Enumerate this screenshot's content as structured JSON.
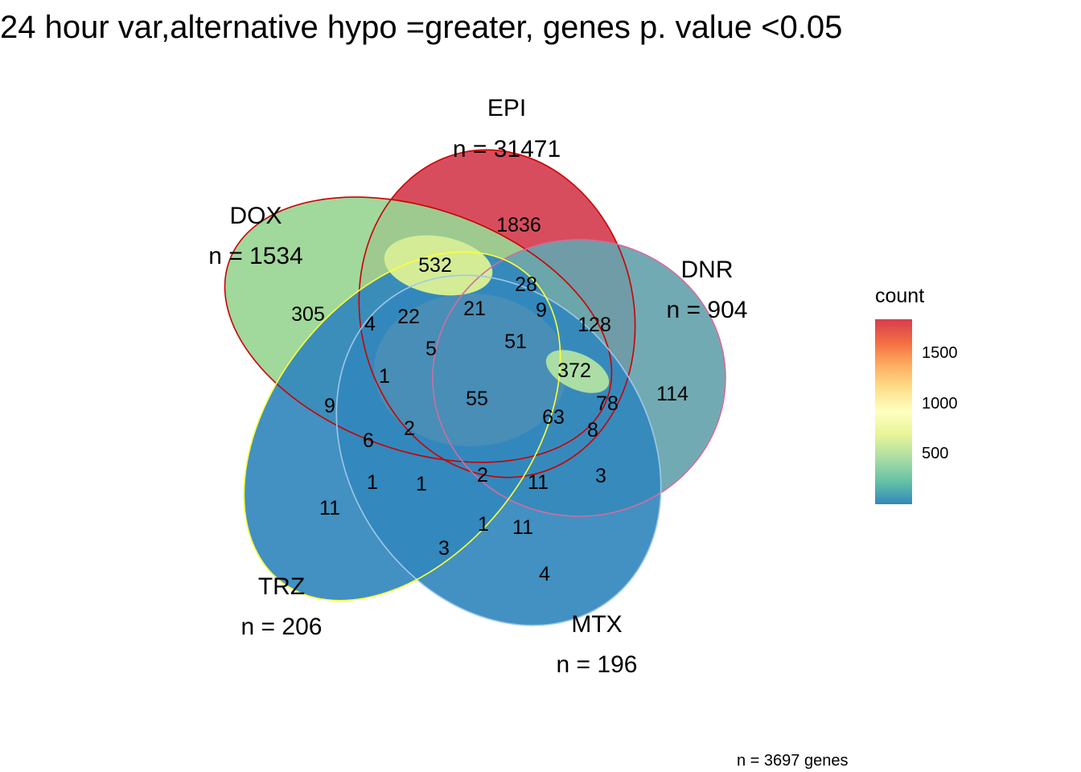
{
  "title": "24 hour var,alternative hypo =greater, genes p. value <0.05",
  "caption": "n = 3697 genes",
  "chart_data": {
    "type": "venn",
    "title": "24 hour var,alternative hypo =greater, genes p. value <0.05",
    "sets": [
      {
        "name": "EPI",
        "size_label": "n = 31471",
        "outline": "#cc0000"
      },
      {
        "name": "DNR",
        "size_label": "n = 904",
        "outline": "#d16d9e"
      },
      {
        "name": "MTX",
        "size_label": "n = 196",
        "outline": "#9ec7e8"
      },
      {
        "name": "TRZ",
        "size_label": "n = 206",
        "outline": "#ffff33"
      },
      {
        "name": "DOX",
        "size_label": "n = 1534",
        "outline": "#cc0000"
      }
    ],
    "regions": [
      {
        "sets": [
          "EPI"
        ],
        "count": 1836
      },
      {
        "sets": [
          "DNR"
        ],
        "count": 114
      },
      {
        "sets": [
          "MTX"
        ],
        "count": 4
      },
      {
        "sets": [
          "TRZ"
        ],
        "count": 11
      },
      {
        "sets": [
          "DOX"
        ],
        "count": 305
      },
      {
        "sets": [
          "EPI",
          "DOX"
        ],
        "count": 532
      },
      {
        "sets": [
          "EPI",
          "DNR"
        ],
        "count": 128
      },
      {
        "sets": [
          "EPI",
          "TRZ",
          "DNR"
        ],
        "count": 28
      },
      {
        "sets": [
          "EPI",
          "DOX",
          "TRZ",
          "DNR"
        ],
        "count": 9
      },
      {
        "sets": [
          "EPI",
          "DOX",
          "TRZ"
        ],
        "count": 21
      },
      {
        "sets": [
          "EPI",
          "DOX",
          "MTX"
        ],
        "count": 22
      },
      {
        "sets": [
          "DOX",
          "MTX"
        ],
        "count": 4
      },
      {
        "sets": [
          "EPI",
          "DOX",
          "MTX",
          "TRZ"
        ],
        "count": 5
      },
      {
        "sets": [
          "EPI",
          "DOX",
          "DNR"
        ],
        "count": 372
      },
      {
        "sets": [
          "EPI",
          "DOX",
          "TRZ",
          "DNR",
          "X1"
        ],
        "count": 51
      },
      {
        "sets": [
          "EPI",
          "DOX",
          "MTX",
          "TRZ",
          "DNR"
        ],
        "count": 55
      },
      {
        "sets": [
          "EPI",
          "DOX",
          "TRZ",
          "DNR",
          "X2"
        ],
        "count": 63
      },
      {
        "sets": [
          "EPI",
          "DOX",
          "DNR",
          "X3"
        ],
        "count": 78
      },
      {
        "sets": [
          "DOX",
          "DNR"
        ],
        "count": 8
      },
      {
        "sets": [
          "MTX",
          "DNR"
        ],
        "count": 3
      },
      {
        "sets": [
          "DOX",
          "TRZ"
        ],
        "count": 9
      },
      {
        "sets": [
          "DOX",
          "MTX",
          "TRZ"
        ],
        "count": 1
      },
      {
        "sets": [
          "DOX",
          "MTX",
          "TRZ",
          "X4"
        ],
        "count": 2
      },
      {
        "sets": [
          "DOX",
          "TRZ",
          "DNR"
        ],
        "count": 6
      },
      {
        "sets": [
          "TRZ",
          "DNR"
        ],
        "count": 1
      },
      {
        "sets": [
          "MTX",
          "TRZ",
          "DNR"
        ],
        "count": 1
      },
      {
        "sets": [
          "MTX",
          "TRZ",
          "DNR",
          "X5"
        ],
        "count": 2
      },
      {
        "sets": [
          "MTX",
          "DNR",
          "X6"
        ],
        "count": 11
      },
      {
        "sets": [
          "MTX",
          "TRZ",
          "X7"
        ],
        "count": 1
      },
      {
        "sets": [
          "MTX",
          "X8"
        ],
        "count": 11
      },
      {
        "sets": [
          "MTX",
          "TRZ"
        ],
        "count": 3
      }
    ],
    "legend": {
      "title": "count",
      "ticks": [
        500,
        1000,
        1500
      ],
      "range": [
        1,
        1836
      ],
      "colors": [
        "#3288bd",
        "#66c2a5",
        "#abdda4",
        "#e6f598",
        "#ffffbf",
        "#fee08b",
        "#fdae61",
        "#f46d43",
        "#d53e4f"
      ],
      "placement": "right"
    },
    "fill_colors": {
      "EPI": "#d53e4f",
      "DOX": "#99d594",
      "DNR": "#66a3ad",
      "MTX": "#3288bd",
      "TRZ": "#3288bd",
      "EPI_DOX": "#d4ec96",
      "center": "#4c8fb5",
      "EPI_DOX_DNR": "#abdda4"
    }
  }
}
